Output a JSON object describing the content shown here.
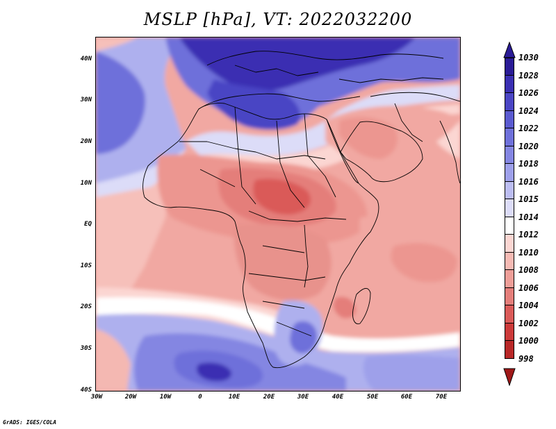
{
  "title": "MSLP [hPa], VT: 2022032200",
  "footer": "GrADS: IGES/COLA",
  "y_axis": {
    "labels": [
      "40N",
      "30N",
      "20N",
      "10N",
      "EQ",
      "10S",
      "20S",
      "30S",
      "40S"
    ]
  },
  "x_axis": {
    "labels": [
      "30W",
      "20W",
      "10W",
      "0",
      "10E",
      "20E",
      "30E",
      "40E",
      "50E",
      "60E",
      "70E"
    ]
  },
  "colorbar": {
    "labels": [
      "1030",
      "1028",
      "1026",
      "1024",
      "1022",
      "1020",
      "1018",
      "1016",
      "1015",
      "1014",
      "1012",
      "1010",
      "1008",
      "1006",
      "1004",
      "1002",
      "1000",
      "998"
    ],
    "colors": [
      "#2a1b96",
      "#3a2fb2",
      "#4a45c4",
      "#5a5ad0",
      "#6e70da",
      "#8486e2",
      "#9ea0ea",
      "#bcbdf2",
      "#dcdcf8",
      "#ffffff",
      "#fbd6d2",
      "#f6bab4",
      "#ee9e98",
      "#e47e7a",
      "#da5a58",
      "#cc3a3a",
      "#b82828",
      "#a01818"
    ]
  },
  "map_colors": {
    "deep_blue": "#3a2fb2",
    "blue": "#6e70da",
    "light_blue": "#aeb0ee",
    "pale_blue": "#dcdcf8",
    "white": "#ffffff",
    "pale_pink": "#fbd6d2",
    "pink": "#f4aea8",
    "salmon": "#ec9690",
    "red": "#e06a66",
    "deep_red": "#d24c4c"
  }
}
